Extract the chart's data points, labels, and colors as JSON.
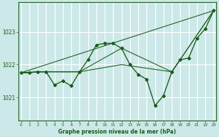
{
  "bg_color": "#cce8e8",
  "grid_color": "#ffffff",
  "line_color": "#1a5c1a",
  "title": "Graphe pression niveau de la mer (hPa)",
  "xlabel_hours": [
    0,
    1,
    2,
    3,
    4,
    5,
    6,
    7,
    8,
    9,
    10,
    11,
    12,
    13,
    14,
    15,
    16,
    17,
    18,
    19,
    20,
    21,
    22,
    23
  ],
  "yticks": [
    1021,
    1022,
    1023
  ],
  "ylim": [
    1020.3,
    1023.9
  ],
  "xlim": [
    -0.3,
    23.3
  ],
  "series_main": [
    1021.75,
    1021.75,
    1021.78,
    1021.78,
    1021.38,
    1021.5,
    1021.35,
    1021.78,
    1022.15,
    1022.6,
    1022.65,
    1022.65,
    1022.5,
    1022.0,
    1021.7,
    1021.55,
    1020.75,
    1021.05,
    1021.78,
    1022.15,
    1022.2,
    1022.8,
    1023.1,
    1023.65
  ],
  "line2_x": [
    0,
    23
  ],
  "line2_y": [
    1021.75,
    1023.65
  ],
  "line3_x": [
    0,
    2,
    7,
    12,
    18,
    23
  ],
  "line3_y": [
    1021.75,
    1021.78,
    1021.78,
    1022.5,
    1021.78,
    1023.65
  ],
  "line4_x": [
    0,
    2,
    7,
    12,
    18,
    23
  ],
  "line4_y": [
    1021.75,
    1021.78,
    1021.78,
    1022.0,
    1021.78,
    1023.65
  ]
}
